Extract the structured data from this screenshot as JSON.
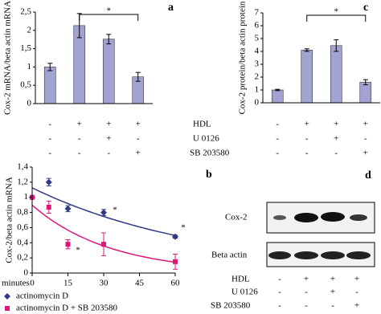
{
  "chart_data": [
    {
      "type": "bar",
      "panel": "a",
      "ylabel": "Cox-2 mRNA/beta actin mRNA",
      "categories": [
        null,
        null,
        null,
        null
      ],
      "values": [
        1.0,
        2.13,
        1.76,
        0.73
      ],
      "errors": [
        0.1,
        0.33,
        0.13,
        0.12
      ],
      "color": "#a3a3d3",
      "ylim": [
        0,
        2.5
      ],
      "yticks": [
        0,
        {
          "value": 0.5,
          "label": "0,5"
        },
        1,
        {
          "value": 1.5,
          "label": "1,5"
        },
        2,
        {
          "value": 2.5,
          "label": "2,5"
        }
      ],
      "annotations": [
        "*"
      ]
    },
    {
      "type": "scatter",
      "panel": "b",
      "ylabel": "Cox-2/beta actin mRNA",
      "xlabel": "minutes",
      "series": [
        {
          "name": "actinomycin D",
          "color": "#2e3a86",
          "marker": "diamond",
          "x": [
            0,
            7,
            15,
            30,
            60
          ],
          "values": [
            1.0,
            1.2,
            0.85,
            0.8,
            0.48
          ],
          "errors": [
            0,
            0.05,
            0.04,
            0.04,
            0.02
          ]
        },
        {
          "name": "actinomycin D + SB 203580",
          "color": "#e0157a",
          "marker": "square",
          "x": [
            0,
            7,
            15,
            30,
            60
          ],
          "values": [
            1.0,
            0.87,
            0.38,
            0.38,
            0.15
          ],
          "errors": [
            0,
            0.08,
            0.06,
            0.15,
            0.1
          ]
        }
      ],
      "xlim": [
        0,
        60
      ],
      "xticks": [
        0,
        15,
        30,
        45,
        60
      ],
      "ylim": [
        0,
        1.4
      ],
      "yticks": [
        0,
        {
          "value": 0.2,
          "label": "0,2"
        },
        {
          "value": 0.4,
          "label": "0,4"
        },
        {
          "value": 0.6,
          "label": "0,6"
        },
        {
          "value": 0.8,
          "label": "0,8"
        },
        1,
        {
          "value": 1.2,
          "label": "1,2"
        },
        {
          "value": 1.4,
          "label": "1,4"
        }
      ],
      "annotations": [
        "*",
        "*",
        "*"
      ]
    },
    {
      "type": "bar",
      "panel": "c",
      "ylabel": "Cox-2 protein/beta actin protein",
      "categories": [
        null,
        null,
        null,
        null
      ],
      "values": [
        1.0,
        4.1,
        4.45,
        1.6
      ],
      "errors": [
        0.05,
        0.1,
        0.45,
        0.2
      ],
      "color": "#a3a3d3",
      "ylim": [
        0,
        7
      ],
      "yticks": [
        0,
        1,
        2,
        3,
        4,
        5,
        6,
        7
      ],
      "annotations": [
        "*"
      ]
    }
  ],
  "treatment_labels": [
    "HDL",
    "U 0126",
    "SB 203580"
  ],
  "treatments_a": [
    [
      "-",
      "+",
      "+",
      "+"
    ],
    [
      "-",
      "-",
      "+",
      "-"
    ],
    [
      "-",
      "-",
      "-",
      "+"
    ]
  ],
  "treatments_c": [
    [
      "-",
      "+",
      "+",
      "+"
    ],
    [
      "-",
      "-",
      "+",
      "-"
    ],
    [
      "-",
      "-",
      "-",
      "+"
    ]
  ],
  "blot": {
    "panel": "d",
    "rows": [
      "Cox-2",
      "Beta actin"
    ],
    "treatment_labels": [
      "HDL",
      "U 0126",
      "SB 203580"
    ],
    "treatments": [
      [
        "-",
        "+",
        "+",
        "+"
      ],
      [
        "-",
        "-",
        "+",
        "-"
      ],
      [
        "-",
        "-",
        "-",
        "+"
      ]
    ]
  }
}
